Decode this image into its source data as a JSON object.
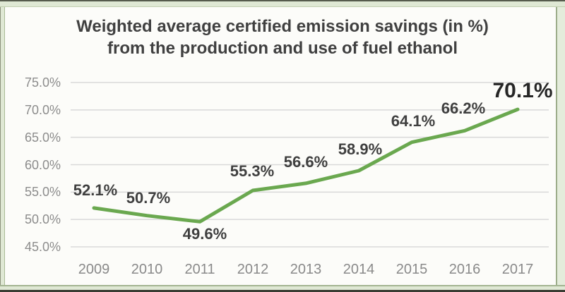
{
  "chart_data": {
    "type": "line",
    "title": "Weighted average certified emission savings (in %) from the production and use of fuel ethanol",
    "title_line1": "Weighted average certified emission savings (in %)",
    "title_line2": "from the production and use of fuel ethanol",
    "categories": [
      "2009",
      "2010",
      "2011",
      "2012",
      "2013",
      "2014",
      "2015",
      "2016",
      "2017"
    ],
    "series": [
      {
        "name": "Weighted average certified emission savings (%)",
        "values": [
          52.1,
          50.7,
          49.6,
          55.3,
          56.6,
          58.9,
          64.1,
          66.2,
          70.1
        ]
      }
    ],
    "data_labels": [
      "52.1%",
      "50.7%",
      "49.6%",
      "55.3%",
      "56.6%",
      "58.9%",
      "64.1%",
      "66.2%",
      "70.1%"
    ],
    "xlabel": "",
    "ylabel": "",
    "ylim": [
      45,
      75
    ],
    "y_tick_step": 5,
    "y_tick_labels_top_to_bottom": [
      "75.0%",
      "70.0%",
      "65.0%",
      "60.0%",
      "55.0%",
      "50.0%",
      "45.0%"
    ],
    "grid": true,
    "legend_position": "none",
    "emphasized_last_label": true,
    "colors": {
      "line": "#6aa84f",
      "grid": "#d9d9d9",
      "title_text": "#404040",
      "axis_text": "#8c8c8c",
      "data_label_text": "#3f3f3f",
      "last_data_label_text": "#262626",
      "frame_green": "#dfe8d4",
      "panel_bg": "#fcfcf9"
    }
  }
}
